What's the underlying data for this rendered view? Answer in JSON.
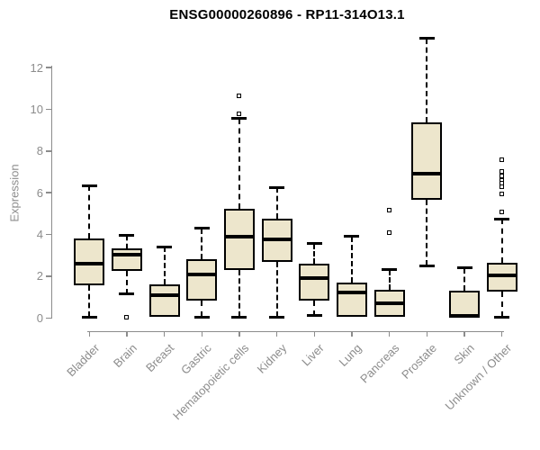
{
  "chart_data": {
    "type": "boxplot",
    "title": "ENSG00000260896 - RP11-314O13.1",
    "ylabel": "Expression",
    "xlabel": "",
    "ylim": [
      0,
      12
    ],
    "yticks": [
      0,
      2,
      4,
      6,
      8,
      10,
      12
    ],
    "grid": false,
    "legend": "none",
    "x_label_rotation": 45,
    "whisker_style": "dashed",
    "categories": [
      "Bladder",
      "Brain",
      "Breast",
      "Gastric",
      "Hematopoietic cells",
      "Kidney",
      "Liver",
      "Lung",
      "Pancreas",
      "Prostate",
      "Skin",
      "Unknown / Other"
    ],
    "series": [
      {
        "category": "Bladder",
        "whisker_low": 0.05,
        "q1": 1.55,
        "median": 2.6,
        "q3": 3.8,
        "whisker_high": 6.35,
        "outliers": []
      },
      {
        "category": "Brain",
        "whisker_low": 1.15,
        "q1": 2.25,
        "median": 3.05,
        "q3": 3.35,
        "whisker_high": 3.95,
        "outliers": [
          0.05
        ]
      },
      {
        "category": "Breast",
        "whisker_low": 0.05,
        "q1": 0.05,
        "median": 1.1,
        "q3": 1.6,
        "whisker_high": 3.4,
        "outliers": []
      },
      {
        "category": "Gastric",
        "whisker_low": 0.05,
        "q1": 0.85,
        "median": 2.1,
        "q3": 2.8,
        "whisker_high": 4.3,
        "outliers": []
      },
      {
        "category": "Hematopoietic cells",
        "whisker_low": 0.05,
        "q1": 2.3,
        "median": 3.9,
        "q3": 5.25,
        "whisker_high": 9.55,
        "outliers": [
          10.65,
          9.8
        ]
      },
      {
        "category": "Kidney",
        "whisker_low": 0.05,
        "q1": 2.7,
        "median": 3.75,
        "q3": 4.75,
        "whisker_high": 6.25,
        "outliers": []
      },
      {
        "category": "Liver",
        "whisker_low": 0.1,
        "q1": 0.85,
        "median": 1.9,
        "q3": 2.6,
        "whisker_high": 3.55,
        "outliers": []
      },
      {
        "category": "Lung",
        "whisker_low": 0.05,
        "q1": 0.05,
        "median": 1.2,
        "q3": 1.7,
        "whisker_high": 3.9,
        "outliers": []
      },
      {
        "category": "Pancreas",
        "whisker_low": 0.05,
        "q1": 0.05,
        "median": 0.7,
        "q3": 1.35,
        "whisker_high": 2.3,
        "outliers": [
          5.15,
          4.1
        ]
      },
      {
        "category": "Prostate",
        "whisker_low": 2.5,
        "q1": 5.65,
        "median": 6.9,
        "q3": 9.35,
        "whisker_high": 13.4,
        "outliers": []
      },
      {
        "category": "Skin",
        "whisker_low": 0.02,
        "q1": 0.02,
        "median": 0.12,
        "q3": 1.3,
        "whisker_high": 2.4,
        "outliers": []
      },
      {
        "category": "Unknown / Other",
        "whisker_low": 0.05,
        "q1": 1.25,
        "median": 2.05,
        "q3": 2.65,
        "whisker_high": 4.75,
        "outliers": [
          7.6,
          7.0,
          6.8,
          6.6,
          6.45,
          6.3,
          5.95,
          5.1
        ]
      }
    ],
    "colors": {
      "background": "#ffffff",
      "box_fill": "#EDE6CC",
      "box_border": "#000000",
      "median": "#000000",
      "whisker": "#000000",
      "axis": "#8c8c8c",
      "tick_label": "#8c8c8c",
      "title": "#000000"
    }
  }
}
